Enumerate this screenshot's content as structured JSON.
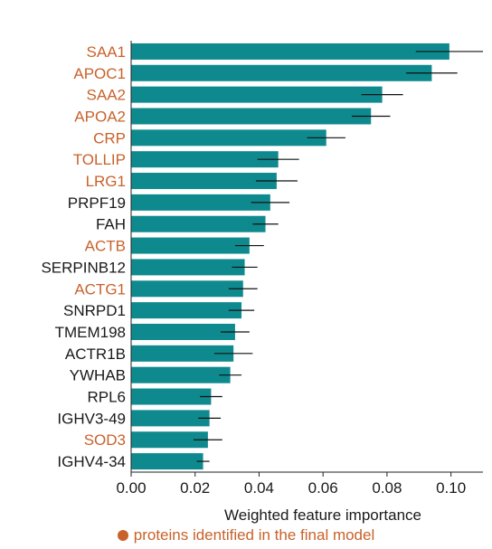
{
  "chart_data": {
    "type": "bar",
    "orientation": "horizontal",
    "xlabel": "Weighted feature importance",
    "xlim": [
      0.0,
      0.11
    ],
    "xticks": [
      "0.00",
      "0.02",
      "0.04",
      "0.06",
      "0.08",
      "0.10"
    ],
    "grid": false,
    "legend": {
      "label": "proteins identified in the final model",
      "placement": "bottom-center"
    },
    "colors": {
      "bar": "#0e8a8e",
      "highlight": "#c8622b",
      "text": "#1a1a1a",
      "error": "#111111"
    },
    "categories": [
      "SAA1",
      "APOC1",
      "SAA2",
      "APOA2",
      "CRP",
      "TOLLIP",
      "LRG1",
      "PRPF19",
      "FAH",
      "ACTB",
      "SERPINB12",
      "ACTG1",
      "SNRPD1",
      "TMEM198",
      "ACTR1B",
      "YWHAB",
      "RPL6",
      "IGHV3-49",
      "SOD3",
      "IGHV4-34"
    ],
    "values": [
      0.0995,
      0.094,
      0.0785,
      0.075,
      0.061,
      0.046,
      0.0455,
      0.0435,
      0.042,
      0.037,
      0.0355,
      0.035,
      0.0345,
      0.0325,
      0.032,
      0.031,
      0.025,
      0.0245,
      0.024,
      0.0225
    ],
    "error": [
      0.0105,
      0.008,
      0.0065,
      0.006,
      0.006,
      0.0065,
      0.0065,
      0.006,
      0.004,
      0.0045,
      0.004,
      0.0045,
      0.004,
      0.0045,
      0.006,
      0.0035,
      0.0035,
      0.0035,
      0.0045,
      0.002
    ],
    "highlighted": [
      true,
      true,
      true,
      true,
      true,
      true,
      true,
      false,
      false,
      true,
      false,
      true,
      false,
      false,
      false,
      false,
      false,
      false,
      true,
      false
    ]
  }
}
